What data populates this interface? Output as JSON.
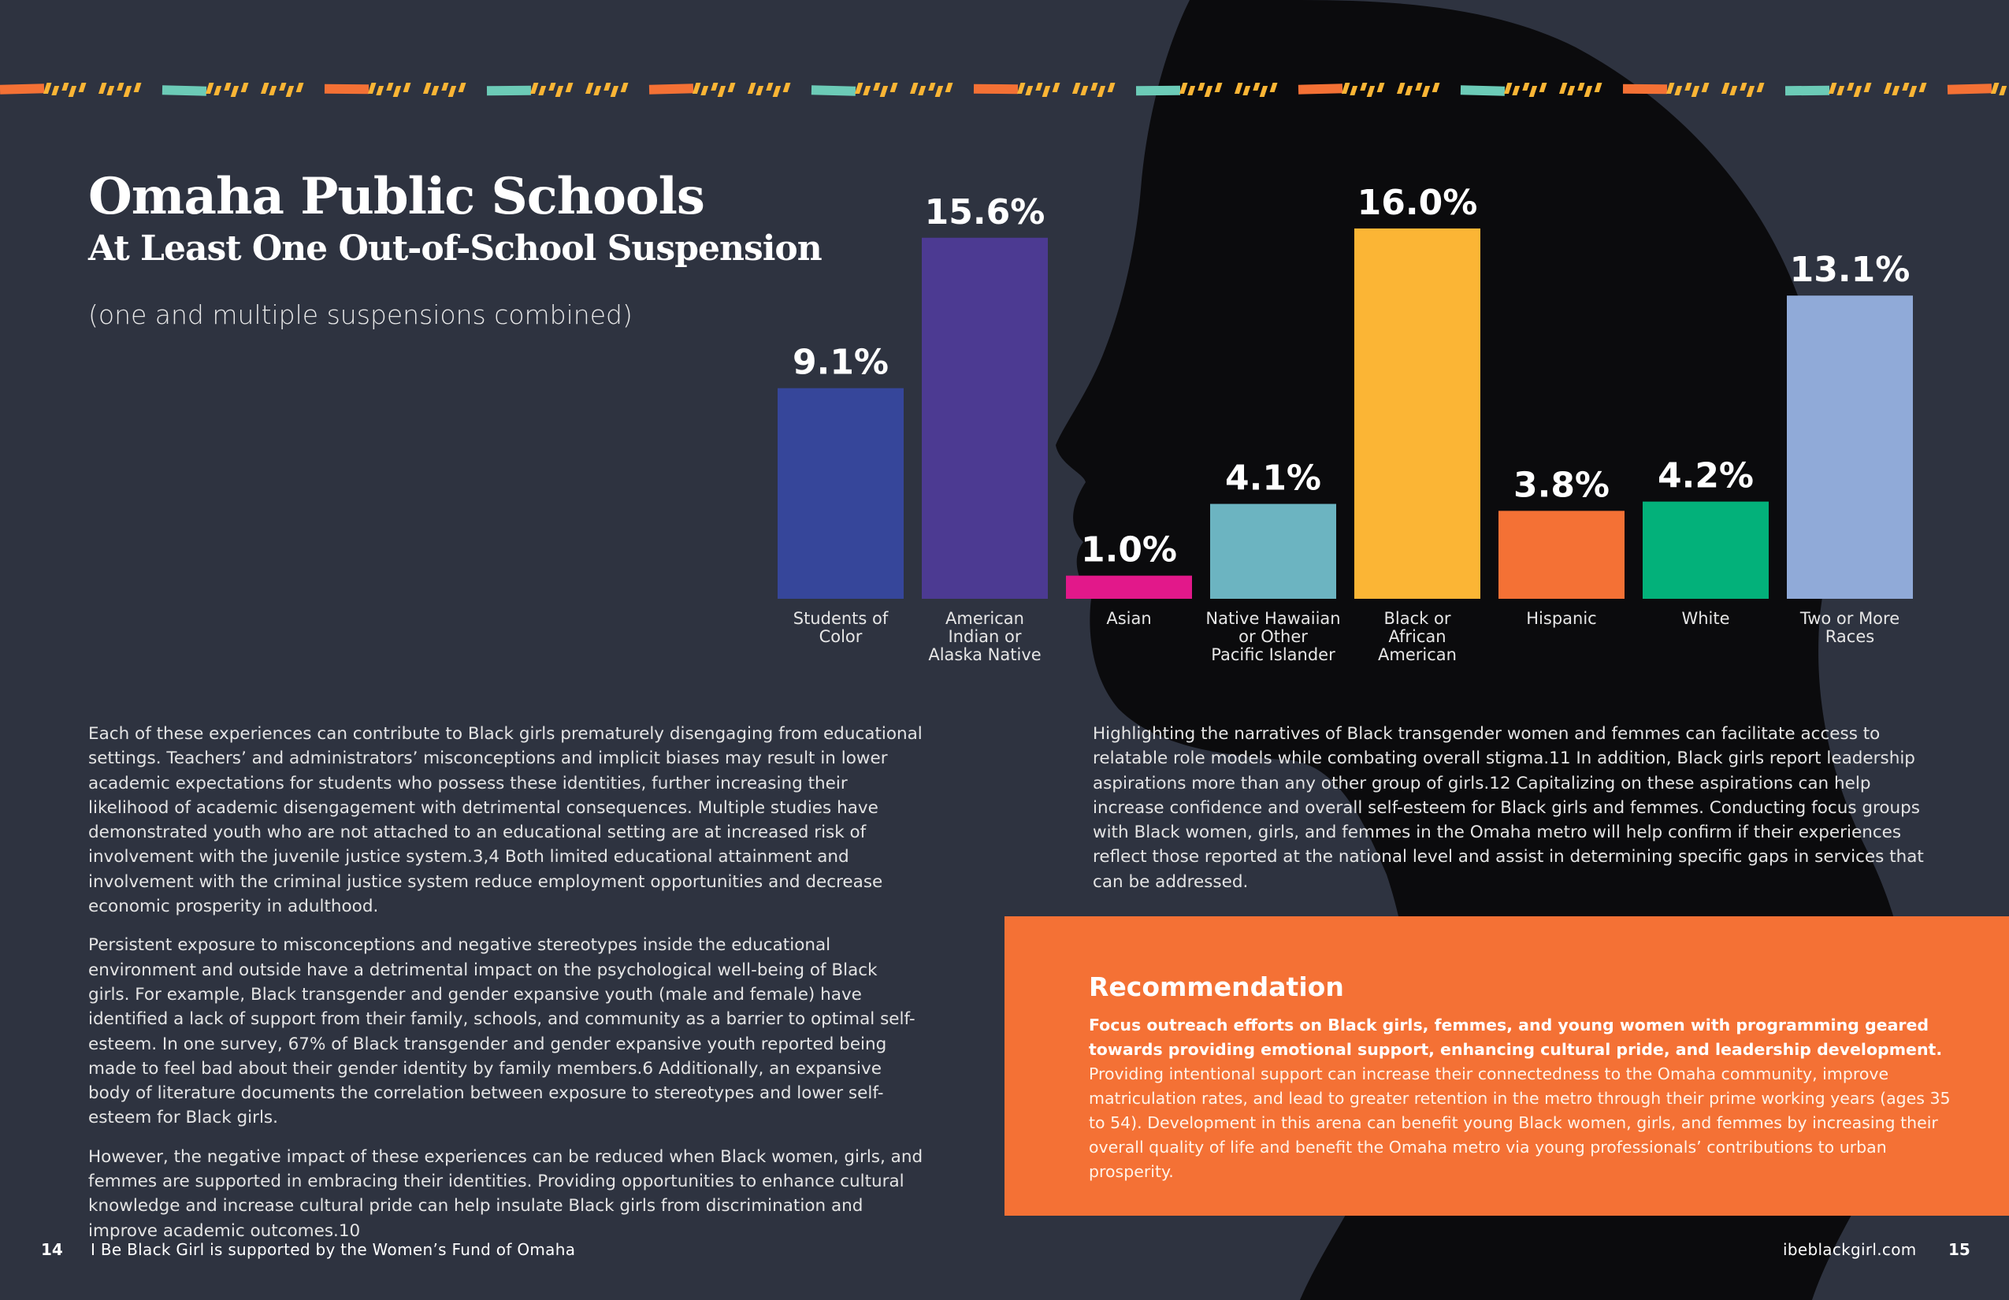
{
  "header": {
    "title": "Omaha Public Schools",
    "subtitle": "At Least One Out-of-School Suspension",
    "note": "(one and multiple suspensions combined)"
  },
  "chart_data": {
    "type": "bar",
    "title": "Omaha Public Schools",
    "subtitle": "At Least One Out-of-School Suspension",
    "categories": [
      [
        "Students of",
        "Color"
      ],
      [
        "American",
        "Indian or",
        "Alaska Native"
      ],
      [
        "Asian"
      ],
      [
        "Native Hawaiian",
        "or Other",
        "Pacific Islander"
      ],
      [
        "Black or",
        "African",
        "American"
      ],
      [
        "Hispanic"
      ],
      [
        "White"
      ],
      [
        "Two or More",
        "Races"
      ]
    ],
    "values": [
      9.1,
      15.6,
      1.0,
      4.1,
      16.0,
      3.8,
      4.2,
      13.1
    ],
    "value_labels": [
      "9.1%",
      "15.6%",
      "1.0%",
      "4.1%",
      "16.0%",
      "3.8%",
      "4.2%",
      "13.1%"
    ],
    "colors": [
      "#36469a",
      "#4c3a92",
      "#e2188a",
      "#6cb4c1",
      "#fbb535",
      "#f47135",
      "#03b17a",
      "#90aad8"
    ],
    "unit": "%",
    "ylim": [
      0,
      16.0
    ],
    "grid": false,
    "legend": "none"
  },
  "body": {
    "left": [
      "Each of these experiences can contribute to Black girls prematurely disengaging from educational settings. Teachers’ and administrators’ misconceptions and implicit biases may result in lower academic expectations for students who possess these identities, further increasing their likelihood of academic disengagement with detrimental consequences. Multiple studies have demonstrated youth who are not attached to an educational setting are at increased risk of involvement with the juvenile justice system.3,4 Both limited educational attainment and involvement with the criminal justice system reduce employment opportunities and decrease economic prosperity in adulthood.",
      "Persistent exposure to misconceptions and negative stereotypes inside the educational environment and outside have a detrimental impact on the psychological well-being of Black girls. For example, Black transgender and gender expansive youth (male and female) have identified a lack of support from their family, schools, and community as a barrier to optimal self-esteem. In one survey, 67% of Black transgender and gender expansive youth reported being made to feel bad about their gender identity by family members.6 Additionally, an expansive body of literature documents the correlation between exposure to stereotypes and lower self-esteem for Black girls.",
      "However, the negative impact of these experiences can be reduced when Black women, girls, and femmes are supported in embracing their identities. Providing opportunities to enhance cultural knowledge and increase cultural pride can help insulate Black girls from discrimination and improve academic outcomes.10"
    ],
    "right": [
      "Highlighting the narratives of Black transgender women and femmes can facilitate access to relatable role models while combating overall stigma.11 In addition, Black girls report leadership aspirations more than any other group of girls.12 Capitalizing on these aspirations can help increase confidence and overall self-esteem for Black girls and femmes. Conducting focus groups with Black women, girls, and femmes in the Omaha metro will help confirm if their experiences reflect those reported at the national level and assist in determining specific gaps in services that can be addressed."
    ]
  },
  "recommendation": {
    "heading": "Recommendation",
    "bold": "Focus outreach efforts on Black girls, femmes, and young women with programming geared towards providing emotional support, enhancing cultural pride, and leadership development.",
    "text": " Providing intentional support can increase their connectedness to the Omaha community, improve matriculation rates, and lead to greater retention in the metro through their prime working years (ages 35 to 54). Development in this arena can benefit young Black women, girls, and femmes by increasing their overall quality of life and benefit the Omaha metro via young professionals’ contributions to urban prosperity."
  },
  "footer": {
    "left_page": "14",
    "left_text": "I Be Black Girl is supported by the Women’s Fund of Omaha",
    "right_text": "ibeblackgirl.com",
    "right_page": "15"
  },
  "colors": {
    "background": "#2e3340",
    "silhouette": "#0b0b0d",
    "accent_orange": "#f47135",
    "border_teal": "#6ccbb7",
    "border_yellow": "#fbb535"
  }
}
